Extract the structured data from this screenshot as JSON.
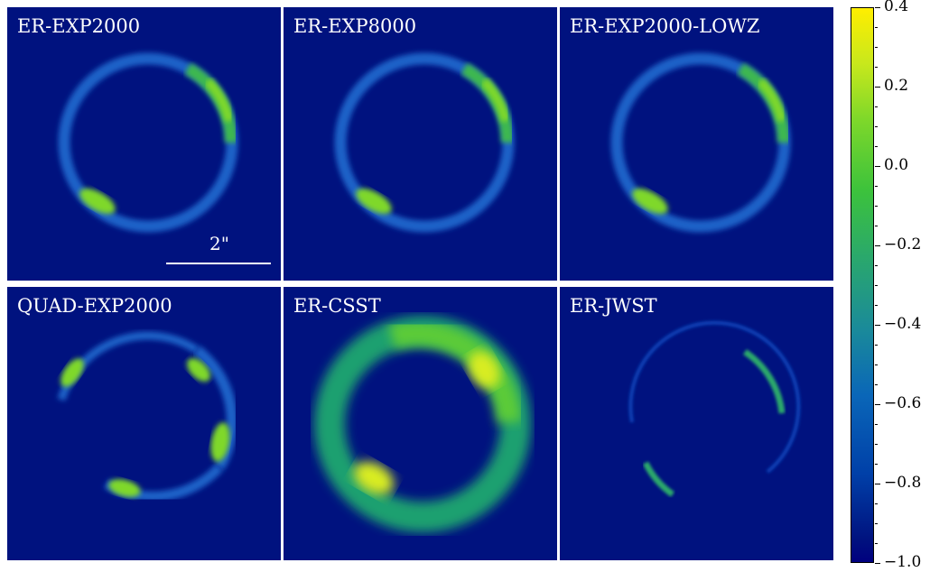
{
  "panels": [
    {
      "label": "ER-EXP2000",
      "scale_label": "2\""
    },
    {
      "label": "ER-EXP8000"
    },
    {
      "label": "ER-EXP2000-LOWZ"
    },
    {
      "label": "QUAD-EXP2000"
    },
    {
      "label": "ER-CSST"
    },
    {
      "label": "ER-JWST"
    }
  ],
  "colorbar": {
    "ticks": [
      "0.4",
      "0.2",
      "0.0",
      "−0.2",
      "−0.4",
      "−0.6",
      "−0.8",
      "−1.0"
    ],
    "colormap": "viridis-like",
    "min": -1.0,
    "max": 0.4
  },
  "colors": {
    "background": "#00127f",
    "ring_base": "#1a62c8",
    "ring_bright": "#3cc23c",
    "ring_peak": "#c8e81c"
  }
}
